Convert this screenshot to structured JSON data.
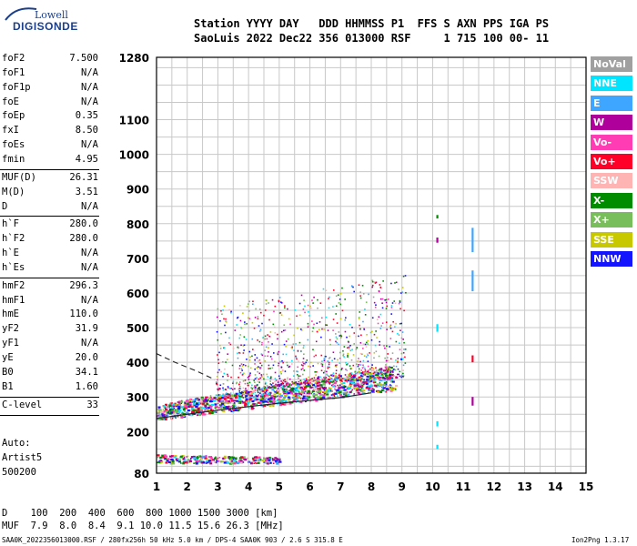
{
  "logo": {
    "line1": "Lowell",
    "line2": "DIGISONDE"
  },
  "header": {
    "line1": "Station YYYY DAY   DDD HHMMSS P1  FFS S AXN PPS IGA PS",
    "line2": "SaoLuis 2022 Dec22 356 013000 RSF     1 715 100 00- 11"
  },
  "params_group1": [
    {
      "label": "foF2",
      "value": "7.500"
    },
    {
      "label": "foF1",
      "value": "N/A"
    },
    {
      "label": "foF1p",
      "value": "N/A"
    },
    {
      "label": "foE",
      "value": "N/A"
    },
    {
      "label": "foEp",
      "value": "0.35"
    },
    {
      "label": "fxI",
      "value": "8.50"
    },
    {
      "label": "foEs",
      "value": "N/A"
    },
    {
      "label": "fmin",
      "value": "4.95"
    }
  ],
  "params_group2": [
    {
      "label": "MUF(D)",
      "value": "26.31"
    },
    {
      "label": "M(D)",
      "value": "3.51"
    },
    {
      "label": "D",
      "value": "N/A"
    }
  ],
  "params_group3": [
    {
      "label": "h`F",
      "value": "280.0"
    },
    {
      "label": "h`F2",
      "value": "280.0"
    },
    {
      "label": "h`E",
      "value": "N/A"
    },
    {
      "label": "h`Es",
      "value": "N/A"
    }
  ],
  "params_group4": [
    {
      "label": "hmF2",
      "value": "296.3"
    },
    {
      "label": "hmF1",
      "value": "N/A"
    },
    {
      "label": "hmE",
      "value": "110.0"
    },
    {
      "label": "yF2",
      "value": "31.9"
    },
    {
      "label": "yF1",
      "value": "N/A"
    },
    {
      "label": "yE",
      "value": "20.0"
    },
    {
      "label": "B0",
      "value": "34.1"
    },
    {
      "label": "B1",
      "value": "1.60"
    }
  ],
  "params_group5": [
    {
      "label": "C-level",
      "value": "33"
    }
  ],
  "autoscaling": {
    "line1": "Auto:",
    "line2": "Artist5",
    "line3": "500200"
  },
  "muf_table": {
    "d_line": "D    100  200  400  600  800 1000 1500 3000 [km]",
    "muf_line": "MUF  7.9  8.0  8.4  9.1 10.0 11.5 15.6 26.3 [MHz]"
  },
  "footer": {
    "left": "SAA0K_2022356013000.RSF / 280fx256h 50 kHz 5.0 km / DPS-4 SAA0K 903 / 2.6 S 315.8 E",
    "right": "Ion2Png 1.3.17"
  },
  "legend": [
    {
      "label": "NoVal",
      "color": "#a0a0a0"
    },
    {
      "label": "NNE",
      "color": "#00e5ff"
    },
    {
      "label": "E",
      "color": "#3ea6ff"
    },
    {
      "label": "W",
      "color": "#b0009c"
    },
    {
      "label": "Vo-",
      "color": "#ff3cb4"
    },
    {
      "label": "Vo+",
      "color": "#ff0028"
    },
    {
      "label": "SSW",
      "color": "#ffb4b4"
    },
    {
      "label": "X-",
      "color": "#008c00"
    },
    {
      "label": "X+",
      "color": "#78be5a"
    },
    {
      "label": "SSE",
      "color": "#c8c800"
    },
    {
      "label": "NNW",
      "color": "#1414ff"
    }
  ],
  "chart_data": {
    "type": "scatter",
    "xlim": [
      1,
      15
    ],
    "ylim": [
      80,
      1280
    ],
    "x_ticks": [
      1,
      2,
      3,
      4,
      5,
      6,
      7,
      8,
      9,
      10,
      11,
      12,
      13,
      14,
      15
    ],
    "y_ticks": [
      80,
      200,
      300,
      400,
      500,
      600,
      700,
      800,
      900,
      1000,
      1100,
      1280
    ],
    "grid": true,
    "x_minor_step": 0.5,
    "y_minor_step": 50,
    "regions": [
      {
        "name": "F-trace",
        "x": [
          1.0,
          8.8
        ],
        "y_low": [
          235,
          320
        ],
        "y_high": [
          280,
          395
        ],
        "density": 1400
      },
      {
        "name": "F-upper-scatter",
        "x": [
          2.9,
          9.1
        ],
        "y_low": [
          320,
          360
        ],
        "y_high": [
          560,
          660
        ],
        "density": 900
      },
      {
        "name": "E-region-trace",
        "x": [
          1.0,
          5.0
        ],
        "y_low": [
          110,
          110
        ],
        "y_high": [
          135,
          128
        ],
        "density": 260
      }
    ],
    "lines": [
      {
        "name": "solid-profile",
        "points": [
          [
            1.0,
            238
          ],
          [
            3.0,
            262
          ],
          [
            5.0,
            282
          ],
          [
            7.0,
            298
          ],
          [
            8.0,
            312
          ]
        ]
      },
      {
        "name": "dashed-profile",
        "points": [
          [
            1.0,
            425
          ],
          [
            1.6,
            400
          ],
          [
            2.3,
            375
          ],
          [
            2.9,
            350
          ]
        ]
      }
    ],
    "vertical_marks": [
      {
        "x": 10.15,
        "y": [
          488,
          510
        ],
        "color": "#00e5ff"
      },
      {
        "x": 10.15,
        "y": [
          215,
          230
        ],
        "color": "#00e5ff"
      },
      {
        "x": 10.15,
        "y": [
          150,
          162
        ],
        "color": "#00e5ff"
      },
      {
        "x": 10.15,
        "y": [
          745,
          760
        ],
        "color": "#b0009c"
      },
      {
        "x": 10.15,
        "y": [
          815,
          825
        ],
        "color": "#008c00"
      },
      {
        "x": 11.3,
        "y": [
          718,
          788
        ],
        "color": "#3ea6ff"
      },
      {
        "x": 11.3,
        "y": [
          605,
          665
        ],
        "color": "#3ea6ff"
      },
      {
        "x": 11.3,
        "y": [
          400,
          420
        ],
        "color": "#ff0028"
      },
      {
        "x": 11.3,
        "y": [
          275,
          300
        ],
        "color": "#b0009c"
      }
    ]
  }
}
